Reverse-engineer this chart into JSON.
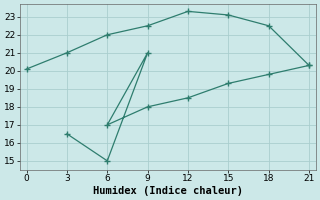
{
  "series1_x": [
    0,
    3,
    6,
    9,
    12,
    15,
    18,
    21
  ],
  "series1_y": [
    20.1,
    21.0,
    22.0,
    22.5,
    23.3,
    23.1,
    22.5,
    20.3
  ],
  "series2_x": [
    3,
    6,
    9,
    6,
    9,
    12,
    15,
    18,
    21
  ],
  "series2_y": [
    16.5,
    15.0,
    21.0,
    17.0,
    18.0,
    18.5,
    19.3,
    19.8,
    20.3
  ],
  "line_color": "#2e7d6e",
  "bg_color": "#cce8e8",
  "grid_color": "#aacece",
  "xlabel": "Humidex (Indice chaleur)",
  "xlim": [
    -0.5,
    21.5
  ],
  "ylim": [
    14.5,
    23.7
  ],
  "xticks": [
    0,
    3,
    6,
    9,
    12,
    15,
    18,
    21
  ],
  "yticks": [
    15,
    16,
    17,
    18,
    19,
    20,
    21,
    22,
    23
  ],
  "xlabel_fontsize": 7.5,
  "tick_fontsize": 6.5
}
